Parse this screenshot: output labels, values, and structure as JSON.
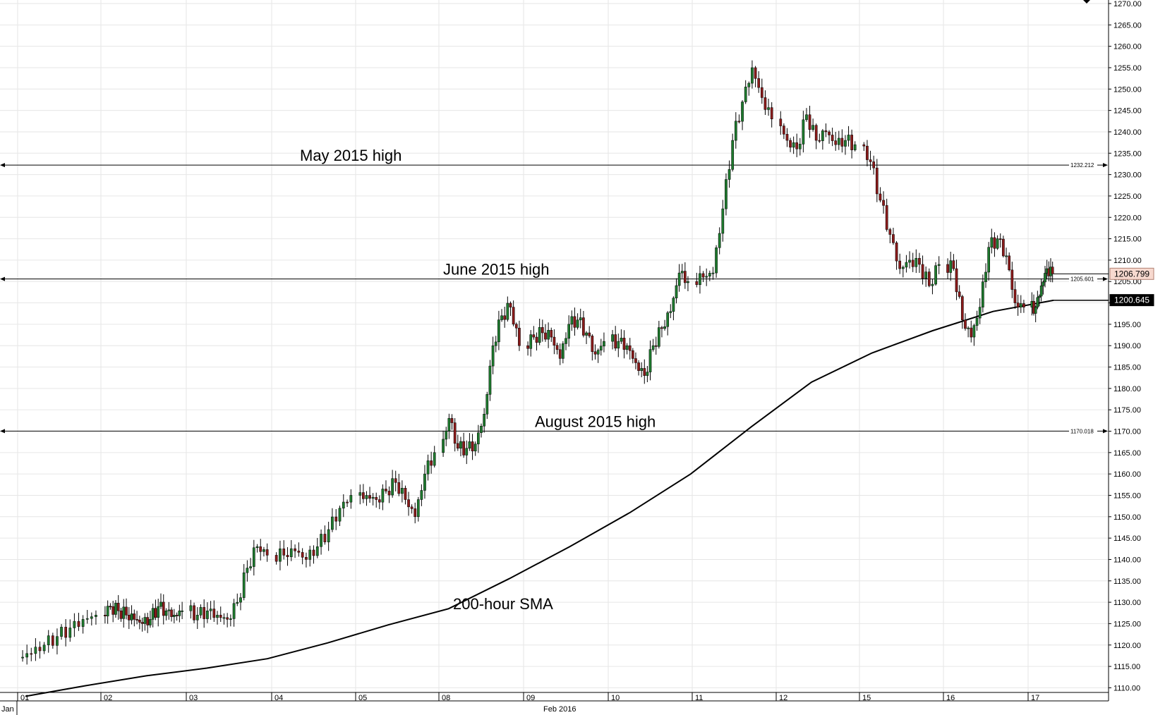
{
  "chart_data": {
    "type": "candlestick",
    "y_axis": {
      "position": "right",
      "ylim": [
        1107,
        1270
      ],
      "ticks": [
        1110,
        1115,
        1120,
        1125,
        1130,
        1135,
        1140,
        1145,
        1150,
        1155,
        1160,
        1165,
        1170,
        1175,
        1180,
        1185,
        1190,
        1195,
        1200,
        1205,
        1210,
        1215,
        1220,
        1225,
        1230,
        1235,
        1240,
        1245,
        1250,
        1255,
        1260,
        1265,
        1270
      ],
      "tick_format_decimals": 2
    },
    "x_axis": {
      "ticks": [
        "01",
        "02",
        "03",
        "04",
        "05",
        "08",
        "09",
        "10",
        "11",
        "12",
        "15",
        "16",
        "17"
      ],
      "month_labels": [
        "Jan",
        "Feb 2016"
      ],
      "grid": true
    },
    "annotations": [
      {
        "text": "May 2015 high",
        "level": 1232.212,
        "label": "1232.212"
      },
      {
        "text": "June 2015 high",
        "level": 1205.601,
        "label": "1205.601"
      },
      {
        "text": "August 2015 high",
        "level": 1170.018,
        "label": "1170.018"
      },
      {
        "text": "200-hour SMA"
      }
    ],
    "price_tags": [
      {
        "value": "1206.799",
        "bg": "#f7d9cf",
        "fg": "#000000",
        "border": "#b08070"
      },
      {
        "value": "1200.645",
        "bg": "#000000",
        "fg": "#ffffff",
        "border": "#000000"
      }
    ],
    "close_segments": [
      {
        "day": "01",
        "closes": [
          1118,
          1120,
          1122,
          1124,
          1126,
          1127
        ]
      },
      {
        "day": "02",
        "closes": [
          1129,
          1128,
          1127,
          1126,
          1125,
          1126,
          1129,
          1128,
          1127,
          1128
        ]
      },
      {
        "day": "03",
        "closes": [
          1127,
          1128,
          1127,
          1126,
          1130,
          1138,
          1143,
          1141
        ]
      },
      {
        "day": "04",
        "closes": [
          1141,
          1142,
          1140,
          1143,
          1147,
          1152,
          1155
        ]
      },
      {
        "day": "05",
        "closes": [
          1155,
          1154,
          1156,
          1158,
          1154,
          1150,
          1160,
          1165
        ]
      },
      {
        "day": "08",
        "closes": [
          1173,
          1166,
          1166,
          1167,
          1174,
          1190,
          1197,
          1199,
          1190
        ]
      },
      {
        "day": "09",
        "closes": [
          1192,
          1193,
          1192,
          1187,
          1195,
          1196,
          1193,
          1188,
          1191
        ]
      },
      {
        "day": "10",
        "closes": [
          1191,
          1190,
          1186,
          1183,
          1190,
          1194,
          1198,
          1207,
          1205
        ]
      },
      {
        "day": "11",
        "closes": [
          1206,
          1207,
          1222,
          1238,
          1247,
          1255,
          1248,
          1243
        ]
      },
      {
        "day": "12",
        "closes": [
          1238,
          1236,
          1244,
          1238,
          1240,
          1237,
          1238,
          1237
        ]
      },
      {
        "day": "15",
        "closes": [
          1233,
          1224,
          1216,
          1208,
          1210,
          1209,
          1204,
          1209
        ]
      },
      {
        "day": "16",
        "closes": [
          1208,
          1196,
          1192,
          1199,
          1213,
          1215,
          1211,
          1200,
          1199
        ]
      },
      {
        "day": "17",
        "closes": [
          1199,
          1204,
          1208,
          1206.8
        ]
      }
    ],
    "sma_200h": [
      1108,
      1110.5,
      1112.8,
      1114.6,
      1116.8,
      1120.5,
      1124.7,
      1128.5,
      1135.5,
      1143,
      1151,
      1160,
      1171,
      1181.5,
      1188.3,
      1193.5,
      1198,
      1200.6
    ]
  }
}
